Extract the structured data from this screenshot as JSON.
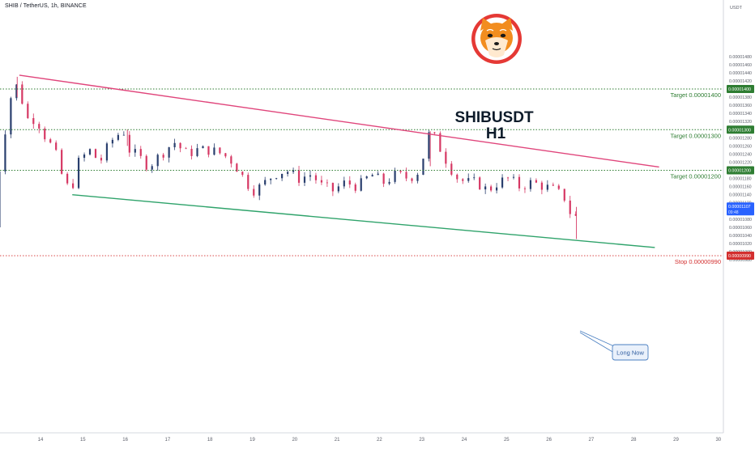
{
  "header": {
    "symbol_line": "SHIB / TetherUS, 1h, BINANCE"
  },
  "annotation": {
    "title_line1": "SHIBUSDT",
    "title_line2": "H1",
    "callout": "Long Now"
  },
  "colors": {
    "background": "#ffffff",
    "up_candle": "#2a3f6e",
    "down_candle": "#d63864",
    "resistance_line": "#e0457b",
    "support_line": "#2fa36b",
    "target_line": "#2e7d32",
    "stop_line": "#d32f2f",
    "price_tag": "#2962ff",
    "callout_border": "#4a7fc1"
  },
  "logo": "shiba-inu-logo",
  "chart_data": {
    "type": "candlestick",
    "title": "SHIBUSDT H1",
    "xlabel": "",
    "ylabel": "USDT",
    "ylim": [
      9.8e-06,
      1.5e-05
    ],
    "x_tick_labels": [
      "14",
      "15",
      "16",
      "17",
      "18",
      "19",
      "20",
      "21",
      "22",
      "23",
      "24",
      "25",
      "26",
      "27",
      "28",
      "29",
      "30"
    ],
    "y_tick_labels": [
      "0.00001480",
      "0.00001460",
      "0.00001440",
      "0.00001420",
      "0.00001400",
      "0.00001380",
      "0.00001360",
      "0.00001340",
      "0.00001320",
      "0.00001300",
      "0.00001280",
      "0.00001260",
      "0.00001240",
      "0.00001220",
      "0.00001200",
      "0.00001180",
      "0.00001160",
      "0.00001140",
      "0.00001120",
      "0.00001100",
      "0.00001080",
      "0.00001060",
      "0.00001040",
      "0.00001020",
      "0.00001000",
      "0.00000980"
    ],
    "current_price": {
      "label": "0.00001107",
      "sub": "09:48",
      "value": 1.107e-05
    },
    "levels": [
      {
        "name": "Target 0.00001400",
        "value": 1.4e-05,
        "tag": "0.00001400",
        "kind": "target"
      },
      {
        "name": "Target 0.00001300",
        "value": 1.3e-05,
        "tag": "0.00001300",
        "kind": "target"
      },
      {
        "name": "Target 0.00001200",
        "value": 1.2e-05,
        "tag": "0.00001200",
        "kind": "target"
      },
      {
        "name": "Stop 0.00000990",
        "value": 9.9e-06,
        "tag": "0.00000990",
        "kind": "stop"
      }
    ],
    "trendlines": [
      {
        "name": "resistance",
        "from": {
          "day": 13.5,
          "price": 1.434e-05
        },
        "to": {
          "day": 28.6,
          "price": 1.208e-05
        }
      },
      {
        "name": "support",
        "from": {
          "day": 14.75,
          "price": 1.14e-05
        },
        "to": {
          "day": 28.5,
          "price": 1.01e-05
        }
      }
    ],
    "price_anchors": [
      [
        12.9,
        1.06e-05
      ],
      [
        13.0,
        1.18e-05
      ],
      [
        13.15,
        1.29e-05
      ],
      [
        13.3,
        1.38e-05
      ],
      [
        13.45,
        1.41e-05
      ],
      [
        13.6,
        1.36e-05
      ],
      [
        13.75,
        1.31e-05
      ],
      [
        13.9,
        1.34e-05
      ],
      [
        14.0,
        1.3e-05
      ],
      [
        14.2,
        1.27e-05
      ],
      [
        14.4,
        1.23e-05
      ],
      [
        14.55,
        1.17e-05
      ],
      [
        14.72,
        1.15e-05
      ],
      [
        14.9,
        1.22e-05
      ],
      [
        15.15,
        1.25e-05
      ],
      [
        15.4,
        1.22e-05
      ],
      [
        15.65,
        1.27e-05
      ],
      [
        15.95,
        1.3e-05
      ],
      [
        16.1,
        1.25e-05
      ],
      [
        16.35,
        1.23e-05
      ],
      [
        16.55,
        1.21e-05
      ],
      [
        16.85,
        1.24e-05
      ],
      [
        17.15,
        1.27e-05
      ],
      [
        17.45,
        1.24e-05
      ],
      [
        17.7,
        1.25e-05
      ],
      [
        18.0,
        1.25e-05
      ],
      [
        18.3,
        1.24e-05
      ],
      [
        18.55,
        1.22e-05
      ],
      [
        18.8,
        1.18e-05
      ],
      [
        19.0,
        1.15e-05
      ],
      [
        19.2,
        1.16e-05
      ],
      [
        19.5,
        1.19e-05
      ],
      [
        19.8,
        1.2e-05
      ],
      [
        20.1,
        1.18e-05
      ],
      [
        20.4,
        1.19e-05
      ],
      [
        20.65,
        1.16e-05
      ],
      [
        20.9,
        1.15e-05
      ],
      [
        21.2,
        1.17e-05
      ],
      [
        21.5,
        1.16e-05
      ],
      [
        21.8,
        1.19e-05
      ],
      [
        22.1,
        1.17e-05
      ],
      [
        22.4,
        1.19e-05
      ],
      [
        22.7,
        1.18e-05
      ],
      [
        22.95,
        1.2e-05
      ],
      [
        23.2,
        1.3e-05
      ],
      [
        23.45,
        1.25e-05
      ],
      [
        23.65,
        1.21e-05
      ],
      [
        23.85,
        1.18e-05
      ],
      [
        24.05,
        1.17e-05
      ],
      [
        24.3,
        1.17e-05
      ],
      [
        24.55,
        1.15e-05
      ],
      [
        24.8,
        1.17e-05
      ],
      [
        25.05,
        1.18e-05
      ],
      [
        25.3,
        1.16e-05
      ],
      [
        25.6,
        1.17e-05
      ],
      [
        25.9,
        1.16e-05
      ],
      [
        26.15,
        1.15e-05
      ],
      [
        26.4,
        1.13e-05
      ],
      [
        26.52,
        1.09e-05
      ],
      [
        26.62,
        1.08e-05
      ],
      [
        26.7,
        1.11e-05
      ]
    ]
  }
}
